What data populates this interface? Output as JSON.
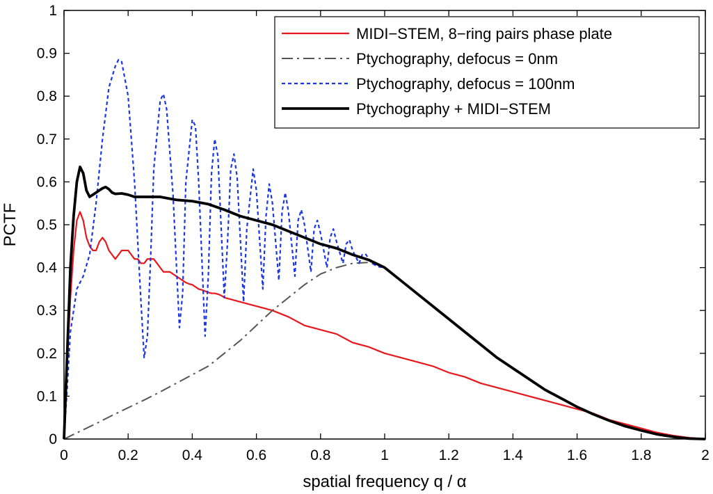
{
  "chart_data": {
    "type": "line",
    "title": "",
    "xlabel": "spatial frequency q / α",
    "ylabel": "PCTF",
    "xlim": [
      0,
      2
    ],
    "ylim": [
      0,
      1
    ],
    "xticks": [
      "0",
      "0.2",
      "0.4",
      "0.6",
      "0.8",
      "1",
      "1.2",
      "1.4",
      "1.6",
      "1.8",
      "2"
    ],
    "yticks": [
      "0",
      "0.1",
      "0.2",
      "0.3",
      "0.4",
      "0.5",
      "0.6",
      "0.7",
      "0.8",
      "0.9",
      "1"
    ],
    "grid": false,
    "legend_position": "top-right",
    "series": [
      {
        "name": "MIDI−STEM, 8−ring pairs phase plate",
        "color": "#e8171b",
        "style": "solid",
        "points": [
          [
            0,
            0
          ],
          [
            0.01,
            0.18
          ],
          [
            0.02,
            0.33
          ],
          [
            0.03,
            0.44
          ],
          [
            0.04,
            0.51
          ],
          [
            0.05,
            0.53
          ],
          [
            0.06,
            0.51
          ],
          [
            0.07,
            0.47
          ],
          [
            0.08,
            0.45
          ],
          [
            0.09,
            0.44
          ],
          [
            0.1,
            0.44
          ],
          [
            0.11,
            0.46
          ],
          [
            0.12,
            0.47
          ],
          [
            0.13,
            0.46
          ],
          [
            0.14,
            0.44
          ],
          [
            0.15,
            0.43
          ],
          [
            0.16,
            0.42
          ],
          [
            0.17,
            0.43
          ],
          [
            0.18,
            0.44
          ],
          [
            0.19,
            0.44
          ],
          [
            0.2,
            0.44
          ],
          [
            0.21,
            0.43
          ],
          [
            0.22,
            0.42
          ],
          [
            0.23,
            0.42
          ],
          [
            0.24,
            0.41
          ],
          [
            0.25,
            0.41
          ],
          [
            0.26,
            0.42
          ],
          [
            0.27,
            0.42
          ],
          [
            0.28,
            0.42
          ],
          [
            0.29,
            0.41
          ],
          [
            0.3,
            0.4
          ],
          [
            0.31,
            0.39
          ],
          [
            0.32,
            0.39
          ],
          [
            0.33,
            0.39
          ],
          [
            0.34,
            0.385
          ],
          [
            0.35,
            0.38
          ],
          [
            0.36,
            0.375
          ],
          [
            0.37,
            0.37
          ],
          [
            0.38,
            0.365
          ],
          [
            0.39,
            0.362
          ],
          [
            0.4,
            0.36
          ],
          [
            0.41,
            0.355
          ],
          [
            0.42,
            0.35
          ],
          [
            0.43,
            0.348
          ],
          [
            0.44,
            0.345
          ],
          [
            0.45,
            0.342
          ],
          [
            0.46,
            0.34
          ],
          [
            0.47,
            0.34
          ],
          [
            0.48,
            0.338
          ],
          [
            0.49,
            0.335
          ],
          [
            0.5,
            0.33
          ],
          [
            0.55,
            0.32
          ],
          [
            0.6,
            0.31
          ],
          [
            0.65,
            0.3
          ],
          [
            0.7,
            0.285
          ],
          [
            0.75,
            0.265
          ],
          [
            0.8,
            0.255
          ],
          [
            0.85,
            0.245
          ],
          [
            0.9,
            0.225
          ],
          [
            0.95,
            0.215
          ],
          [
            1.0,
            0.2
          ],
          [
            1.05,
            0.19
          ],
          [
            1.1,
            0.18
          ],
          [
            1.15,
            0.17
          ],
          [
            1.2,
            0.155
          ],
          [
            1.25,
            0.145
          ],
          [
            1.3,
            0.13
          ],
          [
            1.35,
            0.12
          ],
          [
            1.4,
            0.11
          ],
          [
            1.45,
            0.1
          ],
          [
            1.5,
            0.09
          ],
          [
            1.55,
            0.08
          ],
          [
            1.6,
            0.07
          ],
          [
            1.65,
            0.06
          ],
          [
            1.7,
            0.045
          ],
          [
            1.75,
            0.035
          ],
          [
            1.8,
            0.025
          ],
          [
            1.85,
            0.015
          ],
          [
            1.9,
            0.008
          ],
          [
            1.95,
            0.003
          ],
          [
            2.0,
            0
          ]
        ]
      },
      {
        "name": "Ptychography, defocus = 0nm",
        "color": "#555555",
        "style": "dashdot",
        "points": [
          [
            0,
            0
          ],
          [
            0.05,
            0.018
          ],
          [
            0.1,
            0.036
          ],
          [
            0.15,
            0.055
          ],
          [
            0.2,
            0.073
          ],
          [
            0.25,
            0.091
          ],
          [
            0.3,
            0.11
          ],
          [
            0.35,
            0.13
          ],
          [
            0.4,
            0.15
          ],
          [
            0.45,
            0.17
          ],
          [
            0.5,
            0.2
          ],
          [
            0.55,
            0.23
          ],
          [
            0.6,
            0.265
          ],
          [
            0.65,
            0.3
          ],
          [
            0.7,
            0.33
          ],
          [
            0.75,
            0.36
          ],
          [
            0.8,
            0.385
          ],
          [
            0.85,
            0.4
          ],
          [
            0.9,
            0.41
          ],
          [
            0.95,
            0.412
          ],
          [
            1.0,
            0.4
          ],
          [
            1.05,
            0.37
          ],
          [
            1.1,
            0.34
          ],
          [
            1.15,
            0.31
          ],
          [
            1.2,
            0.28
          ],
          [
            1.25,
            0.25
          ],
          [
            1.3,
            0.22
          ],
          [
            1.35,
            0.19
          ],
          [
            1.4,
            0.165
          ],
          [
            1.45,
            0.14
          ],
          [
            1.5,
            0.115
          ],
          [
            1.55,
            0.095
          ],
          [
            1.6,
            0.075
          ],
          [
            1.65,
            0.058
          ],
          [
            1.7,
            0.043
          ],
          [
            1.75,
            0.03
          ],
          [
            1.8,
            0.02
          ],
          [
            1.85,
            0.011
          ],
          [
            1.9,
            0.005
          ],
          [
            1.95,
            0.001
          ],
          [
            2.0,
            0
          ]
        ]
      },
      {
        "name": "Ptychography, defocus = 100nm",
        "color": "#1a35e8",
        "style": "dotted",
        "points": [
          [
            0,
            0
          ],
          [
            0.01,
            0.12
          ],
          [
            0.02,
            0.25
          ],
          [
            0.04,
            0.35
          ],
          [
            0.06,
            0.38
          ],
          [
            0.08,
            0.43
          ],
          [
            0.1,
            0.55
          ],
          [
            0.12,
            0.7
          ],
          [
            0.14,
            0.82
          ],
          [
            0.16,
            0.87
          ],
          [
            0.17,
            0.885
          ],
          [
            0.18,
            0.88
          ],
          [
            0.2,
            0.8
          ],
          [
            0.22,
            0.6
          ],
          [
            0.24,
            0.32
          ],
          [
            0.25,
            0.19
          ],
          [
            0.26,
            0.24
          ],
          [
            0.27,
            0.42
          ],
          [
            0.28,
            0.63
          ],
          [
            0.3,
            0.79
          ],
          [
            0.31,
            0.805
          ],
          [
            0.32,
            0.77
          ],
          [
            0.34,
            0.57
          ],
          [
            0.36,
            0.26
          ],
          [
            0.37,
            0.34
          ],
          [
            0.38,
            0.6
          ],
          [
            0.4,
            0.745
          ],
          [
            0.41,
            0.73
          ],
          [
            0.42,
            0.6
          ],
          [
            0.44,
            0.24
          ],
          [
            0.45,
            0.38
          ],
          [
            0.46,
            0.62
          ],
          [
            0.47,
            0.7
          ],
          [
            0.48,
            0.66
          ],
          [
            0.5,
            0.33
          ],
          [
            0.51,
            0.46
          ],
          [
            0.52,
            0.63
          ],
          [
            0.53,
            0.665
          ],
          [
            0.54,
            0.61
          ],
          [
            0.56,
            0.32
          ],
          [
            0.57,
            0.49
          ],
          [
            0.59,
            0.63
          ],
          [
            0.6,
            0.58
          ],
          [
            0.62,
            0.35
          ],
          [
            0.63,
            0.52
          ],
          [
            0.64,
            0.595
          ],
          [
            0.65,
            0.55
          ],
          [
            0.67,
            0.37
          ],
          [
            0.68,
            0.53
          ],
          [
            0.69,
            0.575
          ],
          [
            0.7,
            0.53
          ],
          [
            0.72,
            0.38
          ],
          [
            0.73,
            0.51
          ],
          [
            0.74,
            0.535
          ],
          [
            0.75,
            0.5
          ],
          [
            0.77,
            0.39
          ],
          [
            0.78,
            0.49
          ],
          [
            0.79,
            0.51
          ],
          [
            0.8,
            0.48
          ],
          [
            0.82,
            0.4
          ],
          [
            0.83,
            0.47
          ],
          [
            0.84,
            0.49
          ],
          [
            0.85,
            0.46
          ],
          [
            0.87,
            0.41
          ],
          [
            0.88,
            0.455
          ],
          [
            0.89,
            0.465
          ],
          [
            0.9,
            0.44
          ],
          [
            0.92,
            0.41
          ],
          [
            0.93,
            0.43
          ],
          [
            0.94,
            0.432
          ],
          [
            0.96,
            0.41
          ],
          [
            0.98,
            0.402
          ],
          [
            1.0,
            0.4
          ]
        ]
      },
      {
        "name": "Ptychography + MIDI−STEM",
        "color": "#000000",
        "style": "solid-thick",
        "points": [
          [
            0,
            0
          ],
          [
            0.01,
            0.2
          ],
          [
            0.02,
            0.4
          ],
          [
            0.03,
            0.52
          ],
          [
            0.04,
            0.6
          ],
          [
            0.05,
            0.635
          ],
          [
            0.06,
            0.62
          ],
          [
            0.07,
            0.58
          ],
          [
            0.08,
            0.565
          ],
          [
            0.09,
            0.57
          ],
          [
            0.1,
            0.575
          ],
          [
            0.11,
            0.58
          ],
          [
            0.12,
            0.585
          ],
          [
            0.13,
            0.588
          ],
          [
            0.14,
            0.583
          ],
          [
            0.15,
            0.575
          ],
          [
            0.16,
            0.572
          ],
          [
            0.18,
            0.573
          ],
          [
            0.2,
            0.57
          ],
          [
            0.22,
            0.565
          ],
          [
            0.25,
            0.565
          ],
          [
            0.3,
            0.565
          ],
          [
            0.35,
            0.558
          ],
          [
            0.4,
            0.555
          ],
          [
            0.45,
            0.548
          ],
          [
            0.5,
            0.535
          ],
          [
            0.55,
            0.52
          ],
          [
            0.6,
            0.51
          ],
          [
            0.65,
            0.5
          ],
          [
            0.7,
            0.485
          ],
          [
            0.75,
            0.47
          ],
          [
            0.8,
            0.455
          ],
          [
            0.85,
            0.445
          ],
          [
            0.9,
            0.43
          ],
          [
            0.95,
            0.418
          ],
          [
            1.0,
            0.4
          ],
          [
            1.05,
            0.37
          ],
          [
            1.1,
            0.34
          ],
          [
            1.15,
            0.31
          ],
          [
            1.2,
            0.28
          ],
          [
            1.25,
            0.25
          ],
          [
            1.3,
            0.22
          ],
          [
            1.35,
            0.19
          ],
          [
            1.4,
            0.165
          ],
          [
            1.45,
            0.14
          ],
          [
            1.5,
            0.115
          ],
          [
            1.55,
            0.095
          ],
          [
            1.6,
            0.075
          ],
          [
            1.65,
            0.058
          ],
          [
            1.7,
            0.043
          ],
          [
            1.75,
            0.03
          ],
          [
            1.8,
            0.02
          ],
          [
            1.85,
            0.011
          ],
          [
            1.9,
            0.005
          ],
          [
            1.95,
            0.001
          ],
          [
            2.0,
            0
          ]
        ]
      }
    ]
  }
}
